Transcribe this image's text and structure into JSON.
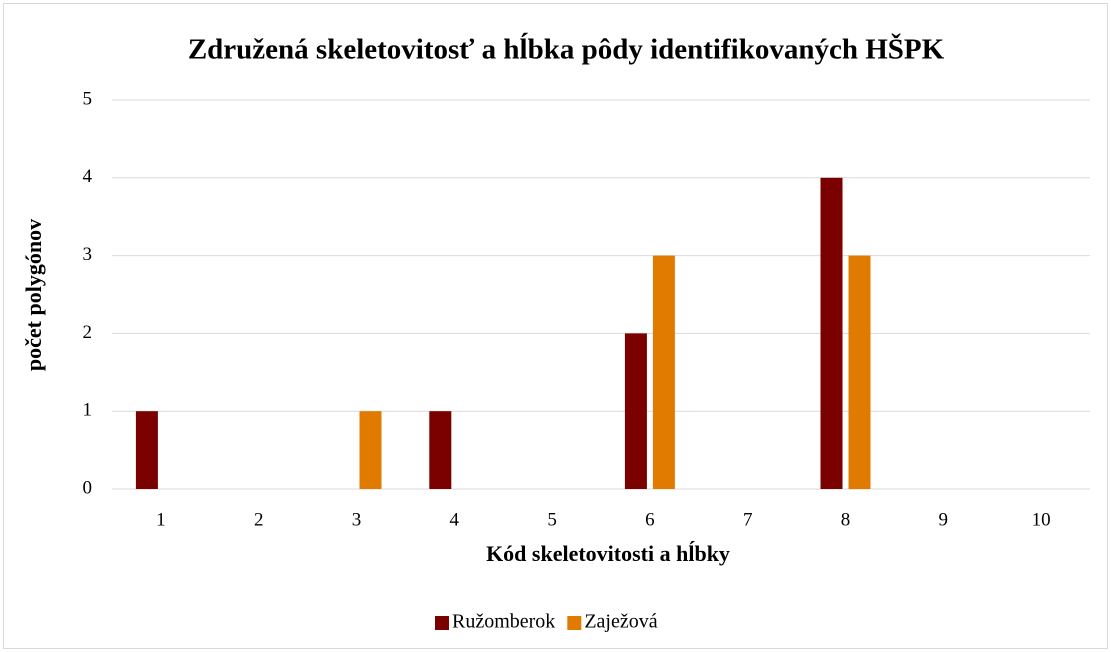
{
  "chart_data": {
    "type": "bar",
    "title": "Združená skeletovitosť a hĺbka pôdy identifikovaných HŠPK",
    "x_label": "Kód skeletovitosti a hĺbky",
    "y_label": "počet polygónov",
    "categories": [
      "1",
      "2",
      "3",
      "4",
      "5",
      "6",
      "7",
      "8",
      "9",
      "10"
    ],
    "series": [
      {
        "name": "Ružomberok",
        "color": "#7b0000",
        "values": [
          1,
          0,
          0,
          1,
          0,
          2,
          0,
          4,
          0,
          0
        ]
      },
      {
        "name": "Zaježová",
        "color": "#e07b00",
        "values": [
          0,
          0,
          1,
          0,
          0,
          3,
          0,
          3,
          0,
          0
        ]
      }
    ],
    "ylim": [
      0,
      5
    ],
    "yticks": [
      0,
      1,
      2,
      3,
      4,
      5
    ],
    "grid": true,
    "legend": "bottom"
  }
}
